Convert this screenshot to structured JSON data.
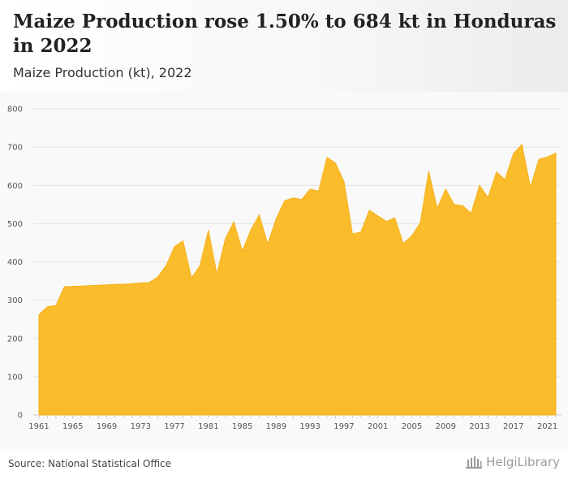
{
  "header": {
    "title": "Maize Production rose 1.50% to 684 kt in Honduras in 2022",
    "subtitle": "Maize Production (kt), 2022"
  },
  "footer": {
    "source": "Source: National Statistical Office",
    "logo_text": "HelgiLibrary"
  },
  "colors": {
    "area": "#fbbc2c",
    "area_line": "#f5b21d",
    "grid": "#e3e3e3",
    "background": "#f9f9f9"
  },
  "chart_data": {
    "type": "area",
    "title": "Maize Production rose 1.50% to 684 kt in Honduras in 2022",
    "subtitle": "Maize Production (kt), 2022",
    "ylabel": "",
    "xlabel": "",
    "ylim": [
      0,
      800
    ],
    "xlim": [
      1961,
      2022
    ],
    "grid": true,
    "y_ticks": [
      0,
      100,
      200,
      300,
      400,
      500,
      600,
      700,
      800
    ],
    "x_ticks": [
      1961,
      1965,
      1969,
      1973,
      1977,
      1981,
      1985,
      1989,
      1993,
      1997,
      2001,
      2005,
      2009,
      2013,
      2017,
      2021
    ],
    "x": [
      1961,
      1962,
      1963,
      1964,
      1965,
      1966,
      1967,
      1968,
      1969,
      1970,
      1971,
      1972,
      1973,
      1974,
      1975,
      1976,
      1977,
      1978,
      1979,
      1980,
      1981,
      1982,
      1983,
      1984,
      1985,
      1986,
      1987,
      1988,
      1989,
      1990,
      1991,
      1992,
      1993,
      1994,
      1995,
      1996,
      1997,
      1998,
      1999,
      2000,
      2001,
      2002,
      2003,
      2004,
      2005,
      2006,
      2007,
      2008,
      2009,
      2010,
      2011,
      2012,
      2013,
      2014,
      2015,
      2016,
      2017,
      2018,
      2019,
      2020,
      2021,
      2022
    ],
    "values": [
      262,
      283,
      286,
      335,
      336,
      337,
      338,
      339,
      340,
      341,
      342,
      343,
      345,
      346,
      360,
      390,
      440,
      455,
      358,
      390,
      483,
      368,
      460,
      505,
      428,
      483,
      523,
      447,
      513,
      560,
      567,
      563,
      590,
      585,
      673,
      658,
      610,
      473,
      478,
      535,
      520,
      506,
      515,
      448,
      468,
      502,
      637,
      540,
      590,
      550,
      547,
      527,
      600,
      568,
      635,
      615,
      683,
      707,
      595,
      668,
      674,
      684
    ]
  }
}
